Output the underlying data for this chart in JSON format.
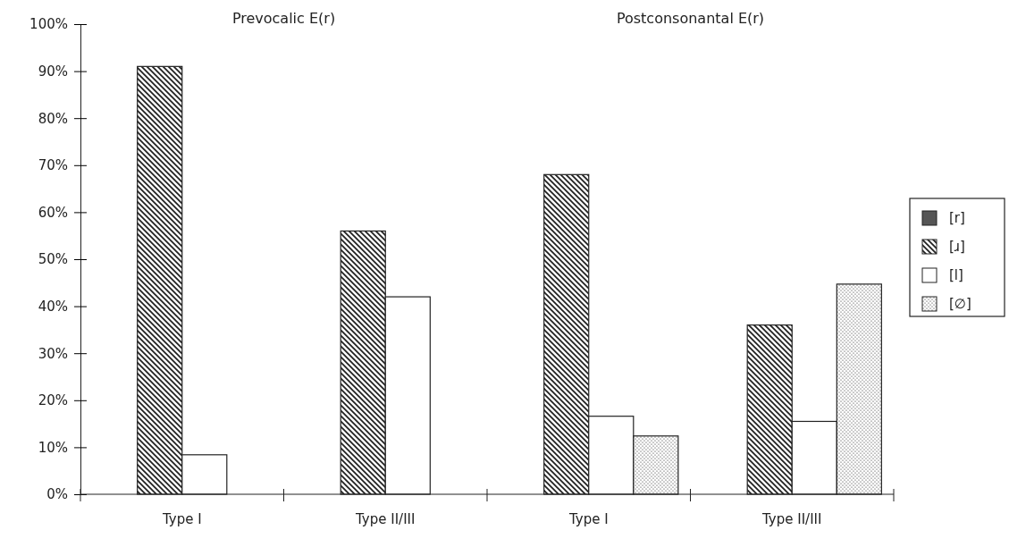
{
  "chart_data": {
    "type": "bar",
    "categories": [
      "Type I",
      "Type II/III",
      "Type I",
      "Type II/III"
    ],
    "annotations": [
      "Prevocalic E(r)",
      "Postconsonantal E(r)"
    ],
    "series": [
      {
        "name": "[r]",
        "color": "#555555",
        "values": [
          0,
          0,
          0,
          0
        ]
      },
      {
        "name": "[ɹ]",
        "color": "#222222",
        "values": [
          91,
          56,
          68,
          36
        ]
      },
      {
        "name": "[l]",
        "color": "#ffffff",
        "values": [
          8.4,
          42,
          16.6,
          15.5
        ]
      },
      {
        "name": "[∅]",
        "color": "#222222",
        "values": [
          0,
          0,
          12.4,
          44.7
        ]
      }
    ],
    "ylim": [
      0,
      100
    ],
    "yticks": [
      {
        "value": 0,
        "label": "0%"
      },
      {
        "value": 10,
        "label": "10%"
      },
      {
        "value": 20,
        "label": "20%"
      },
      {
        "value": 30,
        "label": "30%"
      },
      {
        "value": 40,
        "label": "40%"
      },
      {
        "value": 50,
        "label": "50%"
      },
      {
        "value": 60,
        "label": "60%"
      },
      {
        "value": 70,
        "label": "70%"
      },
      {
        "value": 80,
        "label": "80%"
      },
      {
        "value": 90,
        "label": "90%"
      },
      {
        "value": 100,
        "label": "100%"
      }
    ],
    "grid": false,
    "legend": "right"
  }
}
